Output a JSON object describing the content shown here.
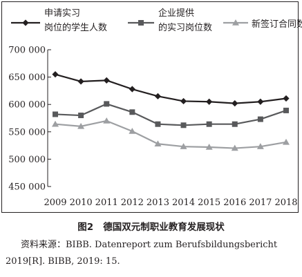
{
  "chart_data": {
    "type": "line",
    "x": [
      "2009",
      "2010",
      "2011",
      "2012",
      "2013",
      "2014",
      "2015",
      "2016",
      "2017",
      "2018"
    ],
    "y_tick_labels": [
      "700 000",
      "650 000",
      "600 000",
      "550 000",
      "500 000",
      "450 000"
    ],
    "y_ticks": [
      700000,
      650000,
      600000,
      550000,
      500000,
      450000
    ],
    "ylim": [
      450000,
      700000
    ],
    "grid": false,
    "legend_position": "top",
    "series": [
      {
        "name_lines": [
          "申请实习",
          "岗位的学生人数"
        ],
        "marker": "diamond",
        "color": "#231f20",
        "values": [
          655000,
          642000,
          644000,
          628000,
          615000,
          606000,
          605000,
          602000,
          605000,
          611000
        ]
      },
      {
        "name_lines": [
          "企业提供",
          "的实习岗位数"
        ],
        "marker": "square",
        "color": "#58595b",
        "values": [
          582000,
          580000,
          601000,
          586000,
          564000,
          562000,
          564000,
          564000,
          573000,
          589000
        ]
      },
      {
        "name_lines": [
          "新签订合同数"
        ],
        "marker": "triangle",
        "color": "#9d9fa2",
        "values": [
          564000,
          560000,
          570000,
          551000,
          528000,
          523000,
          522000,
          520000,
          523000,
          531000
        ]
      }
    ]
  },
  "caption": {
    "label": "图2",
    "title": "德国双元制职业教育发展现状"
  },
  "source": {
    "text": "资料来源：BIBB. Datenreport zum Berufsbildungsbericht 2019[R]. BIBB, 2019: 15."
  }
}
